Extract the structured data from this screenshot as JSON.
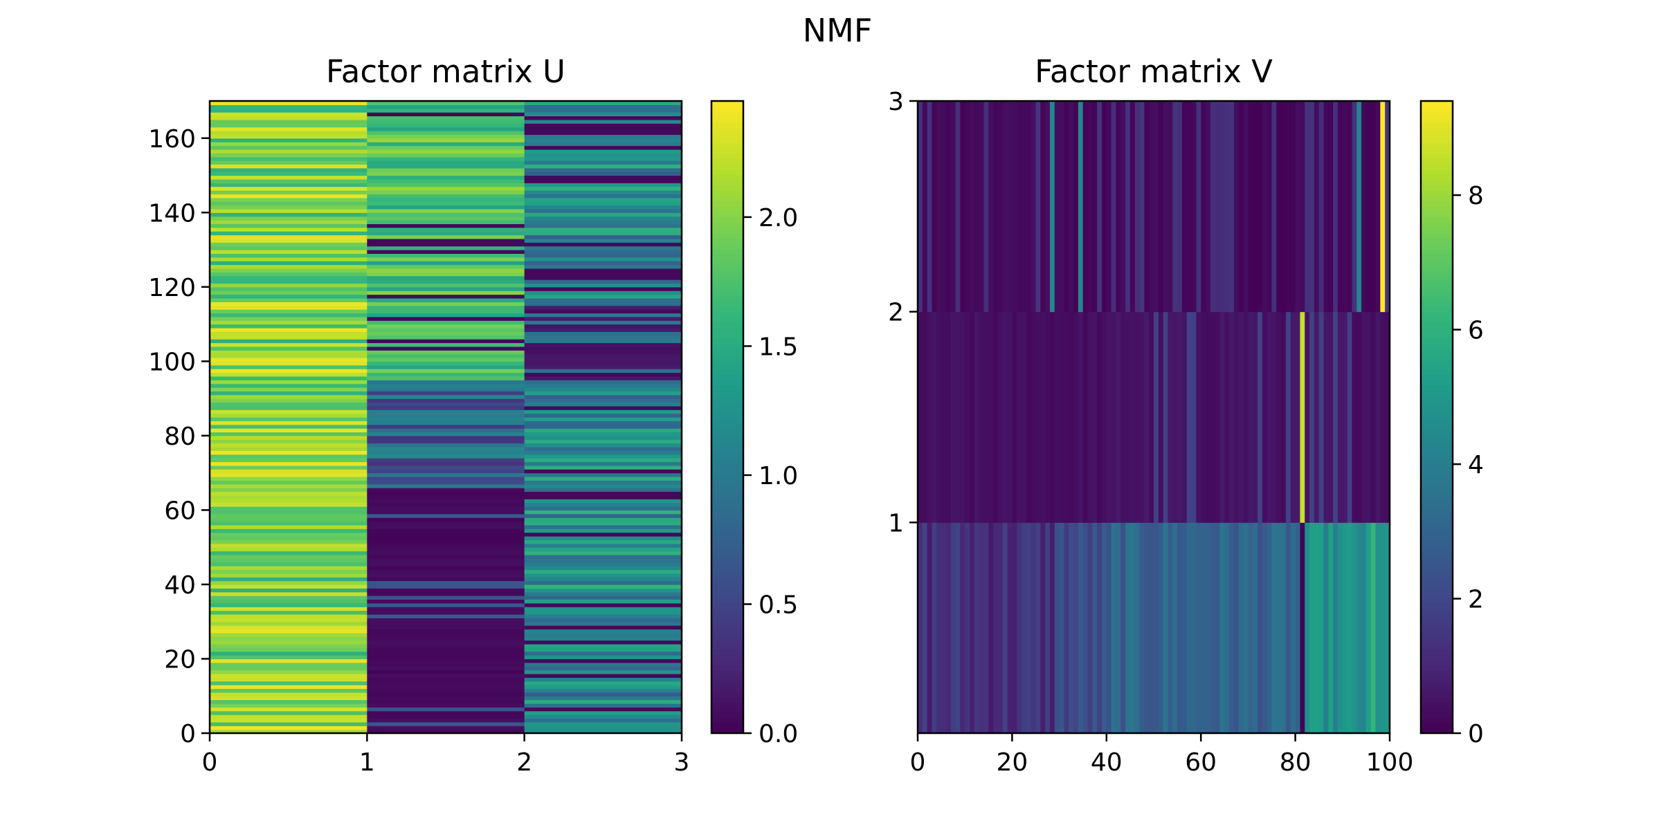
{
  "figure": {
    "title": "NMF"
  },
  "chart_data": [
    {
      "type": "heatmap",
      "title": "Factor matrix U",
      "colormap": "viridis",
      "xlim": [
        0,
        3
      ],
      "ylim": [
        0,
        170
      ],
      "n_rows": 170,
      "n_cols": 3,
      "xticks": [
        0,
        1,
        2,
        3
      ],
      "yticks": [
        0,
        20,
        40,
        60,
        80,
        100,
        120,
        140,
        160
      ],
      "colorbar": {
        "min": 0,
        "max": 2.45,
        "ticks": [
          "0.0",
          "0.5",
          "1.0",
          "1.5",
          "2.0"
        ],
        "tick_values": [
          0,
          0.5,
          1.0,
          1.5,
          2.0
        ]
      },
      "column_ranges": [
        {
          "col": 0,
          "min": 1.5,
          "max": 2.45,
          "typical": 2.0
        },
        {
          "col": 1,
          "min": 0.0,
          "max": 2.3,
          "note": "near 0 for rows 0-65, higher (1.5-2.0) for rows 95-170"
        },
        {
          "col": 2,
          "min": 0.0,
          "max": 2.2,
          "note": "mixed 0.5-1.5, near 0 around rows 95-115"
        }
      ]
    },
    {
      "type": "heatmap",
      "title": "Factor matrix V",
      "colormap": "viridis",
      "xlim": [
        0,
        100
      ],
      "ylim": [
        0,
        3
      ],
      "n_rows": 3,
      "n_cols": 100,
      "xticks": [
        0,
        20,
        40,
        60,
        80,
        100
      ],
      "yticks": [
        1,
        2,
        3
      ],
      "colorbar": {
        "min": 0,
        "max": 9.4,
        "ticks": [
          "0",
          "2",
          "4",
          "6",
          "8"
        ],
        "tick_values": [
          0,
          2,
          4,
          6,
          8
        ]
      },
      "highlights": [
        {
          "row": 0,
          "col": 81,
          "value": 0.1
        },
        {
          "row": 0,
          "col": 96,
          "value": 6.2
        },
        {
          "row": 1,
          "col": 81,
          "value": 8.6
        },
        {
          "row": 2,
          "col": 98,
          "value": 9.4
        }
      ]
    }
  ]
}
